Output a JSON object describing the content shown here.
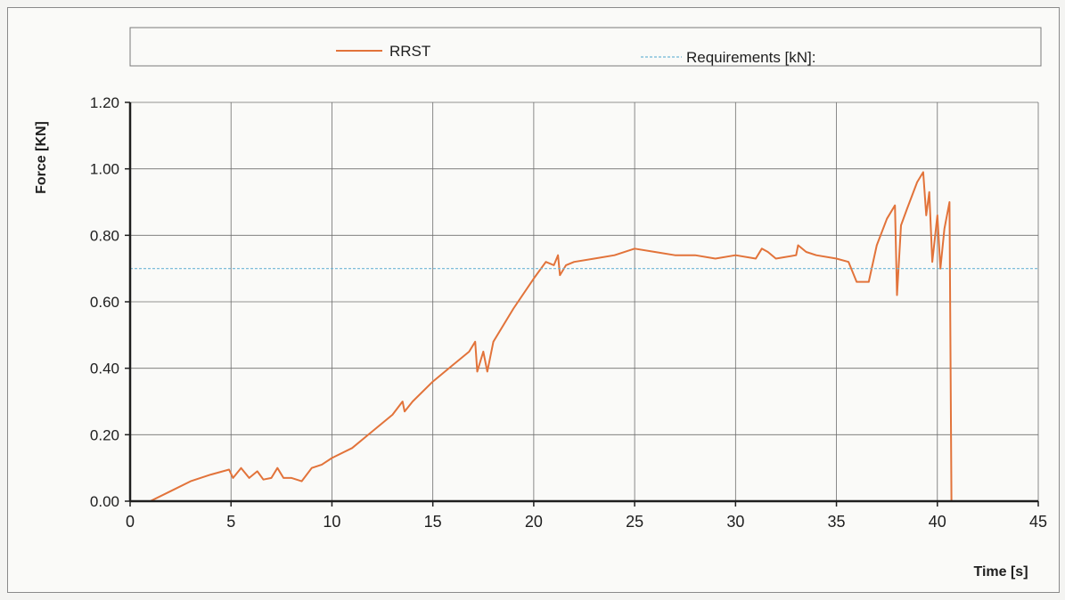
{
  "colors": {
    "background": "#fafaf8",
    "grid": "#6e6e6e",
    "axis": "#1e1e1e",
    "series_line": "#e2733a",
    "requirement_line": "#6fb6d6"
  },
  "chart_data": {
    "type": "line",
    "title": "",
    "xlabel": "Time [s]",
    "ylabel": "Force [KN]",
    "xlim": [
      0,
      45
    ],
    "ylim": [
      0,
      1.2
    ],
    "x_ticks": [
      0,
      5,
      10,
      15,
      20,
      25,
      30,
      35,
      40,
      45
    ],
    "x_tick_labels": [
      "0",
      "5",
      "10",
      "15",
      "20",
      "25",
      "30",
      "35",
      "40",
      "45"
    ],
    "y_ticks": [
      0,
      0.2,
      0.4,
      0.6,
      0.8,
      1.0,
      1.2
    ],
    "y_tick_labels": [
      "0.00",
      "0.20",
      "0.40",
      "0.60",
      "0.80",
      "1.00",
      "1.20"
    ],
    "grid": true,
    "legend_position": "top",
    "series": [
      {
        "name": "RRST",
        "color": "#e2733a",
        "style": "solid",
        "points": [
          [
            0,
            0.0
          ],
          [
            1.0,
            0.0
          ],
          [
            2.0,
            0.03
          ],
          [
            3.0,
            0.06
          ],
          [
            4.0,
            0.08
          ],
          [
            4.9,
            0.095
          ],
          [
            5.1,
            0.07
          ],
          [
            5.5,
            0.1
          ],
          [
            5.9,
            0.07
          ],
          [
            6.3,
            0.09
          ],
          [
            6.6,
            0.065
          ],
          [
            7.0,
            0.07
          ],
          [
            7.3,
            0.1
          ],
          [
            7.6,
            0.07
          ],
          [
            8.0,
            0.07
          ],
          [
            8.5,
            0.06
          ],
          [
            9.0,
            0.1
          ],
          [
            9.5,
            0.11
          ],
          [
            10,
            0.13
          ],
          [
            11,
            0.16
          ],
          [
            12,
            0.21
          ],
          [
            13,
            0.26
          ],
          [
            13.5,
            0.3
          ],
          [
            13.6,
            0.27
          ],
          [
            14,
            0.3
          ],
          [
            15,
            0.36
          ],
          [
            16,
            0.41
          ],
          [
            16.8,
            0.45
          ],
          [
            17.1,
            0.48
          ],
          [
            17.2,
            0.39
          ],
          [
            17.5,
            0.45
          ],
          [
            17.7,
            0.39
          ],
          [
            18,
            0.48
          ],
          [
            19,
            0.58
          ],
          [
            20,
            0.67
          ],
          [
            20.6,
            0.72
          ],
          [
            21.0,
            0.71
          ],
          [
            21.2,
            0.74
          ],
          [
            21.3,
            0.68
          ],
          [
            21.6,
            0.71
          ],
          [
            22,
            0.72
          ],
          [
            23,
            0.73
          ],
          [
            24,
            0.74
          ],
          [
            25,
            0.76
          ],
          [
            26,
            0.75
          ],
          [
            27,
            0.74
          ],
          [
            28,
            0.74
          ],
          [
            29,
            0.73
          ],
          [
            30,
            0.74
          ],
          [
            31,
            0.73
          ],
          [
            31.3,
            0.76
          ],
          [
            31.6,
            0.75
          ],
          [
            32,
            0.73
          ],
          [
            33,
            0.74
          ],
          [
            33.1,
            0.77
          ],
          [
            33.5,
            0.75
          ],
          [
            34,
            0.74
          ],
          [
            35,
            0.73
          ],
          [
            35.6,
            0.72
          ],
          [
            36.0,
            0.66
          ],
          [
            36.6,
            0.66
          ],
          [
            37.0,
            0.77
          ],
          [
            37.5,
            0.85
          ],
          [
            37.9,
            0.89
          ],
          [
            38.0,
            0.62
          ],
          [
            38.2,
            0.83
          ],
          [
            38.5,
            0.88
          ],
          [
            39.0,
            0.96
          ],
          [
            39.3,
            0.99
          ],
          [
            39.45,
            0.86
          ],
          [
            39.6,
            0.93
          ],
          [
            39.75,
            0.72
          ],
          [
            40.0,
            0.86
          ],
          [
            40.15,
            0.7
          ],
          [
            40.35,
            0.82
          ],
          [
            40.6,
            0.9
          ],
          [
            40.7,
            0.0
          ],
          [
            40.9,
            0.0
          ]
        ]
      },
      {
        "name": "Requirements [kN]:",
        "color": "#6fb6d6",
        "style": "dashed",
        "points": [
          [
            0,
            0.7
          ],
          [
            45,
            0.7
          ]
        ]
      }
    ]
  }
}
